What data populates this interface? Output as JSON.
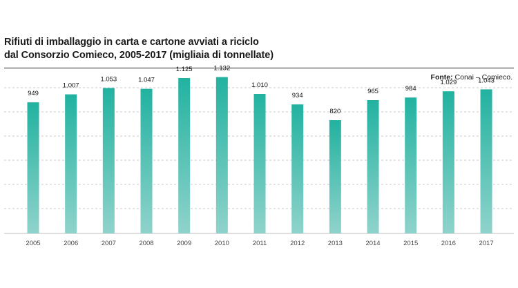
{
  "title": {
    "line1": "Rifiuti di imballaggio in carta e cartone avviati a riciclo",
    "line2": "dal Consorzio Comieco, 2005-2017 (migliaia di tonnellate)"
  },
  "source": {
    "label": "Fonte:",
    "text": "Conai – Comieco."
  },
  "colors": {
    "bar_top": "#22b2a0",
    "bar_bottom": "#8fd3cb",
    "grid": "#c8c8c8",
    "baseline": "#bdbdbd"
  },
  "chart_data": {
    "type": "bar",
    "categories": [
      "2005",
      "2006",
      "2007",
      "2008",
      "2009",
      "2010",
      "2011",
      "2012",
      "2013",
      "2014",
      "2015",
      "2016",
      "2017"
    ],
    "values": [
      949,
      1007,
      1053,
      1047,
      1125,
      1132,
      1010,
      934,
      820,
      965,
      984,
      1029,
      1043
    ],
    "value_labels": [
      "949",
      "1.007",
      "1.053",
      "1.047",
      "1.125",
      "1.132",
      "1.010",
      "934",
      "820",
      "965",
      "984",
      "1.029",
      "1.043"
    ],
    "ylim": [
      0,
      1200
    ],
    "grid": true,
    "legend": "none",
    "xlabel": "",
    "ylabel": ""
  }
}
